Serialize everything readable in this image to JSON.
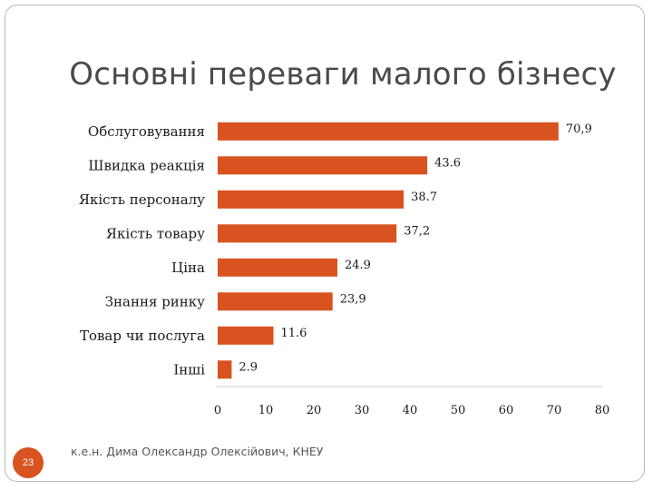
{
  "slide": {
    "title": "Основні переваги малого бізнесу",
    "slide_number": "23",
    "footer": "к.е.н. Дима Олександр Олексійович, КНЕУ"
  },
  "colors": {
    "bar": "#d8531f",
    "axis": "#c8c8c8"
  },
  "chart_data": {
    "type": "bar",
    "orientation": "horizontal",
    "title": "",
    "xlabel": "",
    "ylabel": "",
    "categories": [
      "Обслуговування",
      "Швидка реакція",
      "Якість персоналу",
      "Якість товару",
      "Ціна",
      "Знання ринку",
      "Товар чи послуга",
      "Інші"
    ],
    "values": [
      70.9,
      43.6,
      38.7,
      37.2,
      24.9,
      23.9,
      11.6,
      2.9
    ],
    "value_labels": [
      "70,9",
      "43.6",
      "38.7",
      "37,2",
      "24.9",
      "23,9",
      "11.6",
      "2.9"
    ],
    "xlim": [
      0,
      80
    ],
    "ticks": [
      0,
      10,
      20,
      30,
      40,
      50,
      60,
      70,
      80
    ],
    "grid": false
  }
}
